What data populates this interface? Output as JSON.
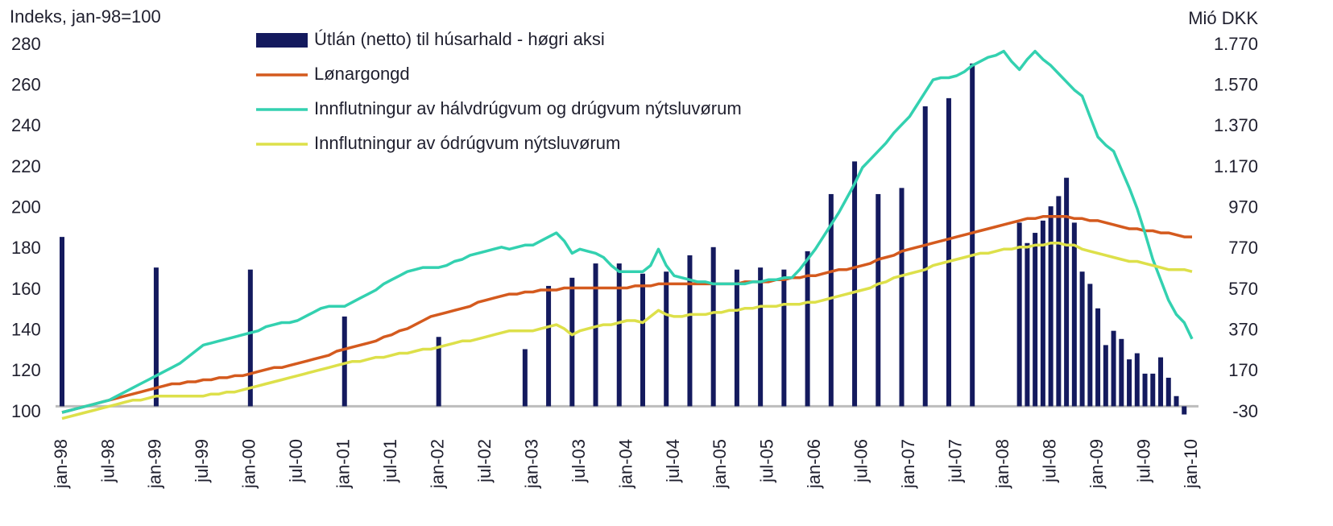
{
  "chart_data": {
    "type": "combo",
    "ylabel": "Indeks, jan-98=100",
    "y2label": "Mió DKK",
    "categories": [
      "jan-98",
      null,
      null,
      null,
      null,
      null,
      "jul-98",
      null,
      null,
      null,
      null,
      null,
      "jan-99",
      null,
      null,
      null,
      null,
      null,
      "jul-99",
      null,
      null,
      null,
      null,
      null,
      "jan-00",
      null,
      null,
      null,
      null,
      null,
      "jul-00",
      null,
      null,
      null,
      null,
      null,
      "jan-01",
      null,
      null,
      null,
      null,
      null,
      "jul-01",
      null,
      null,
      null,
      null,
      null,
      "jan-02",
      null,
      null,
      null,
      null,
      null,
      "jul-02",
      null,
      null,
      null,
      null,
      null,
      "jan-03",
      null,
      null,
      null,
      null,
      null,
      "jul-03",
      null,
      null,
      null,
      null,
      null,
      "jan-04",
      null,
      null,
      null,
      null,
      null,
      "jul-04",
      null,
      null,
      null,
      null,
      null,
      "jan-05",
      null,
      null,
      null,
      null,
      null,
      "jul-05",
      null,
      null,
      null,
      null,
      null,
      "jan-06",
      null,
      null,
      null,
      null,
      null,
      "jul-06",
      null,
      null,
      null,
      null,
      null,
      "jan-07",
      null,
      null,
      null,
      null,
      null,
      "jul-07",
      null,
      null,
      null,
      null,
      null,
      "jan-08",
      null,
      null,
      null,
      null,
      null,
      "jul-08",
      null,
      null,
      null,
      null,
      null,
      "jan-09",
      null,
      null,
      null,
      null,
      null,
      "jul-09",
      null,
      null,
      null,
      null,
      null,
      "jan-10"
    ],
    "ylim": [
      100,
      280
    ],
    "yticks": [
      100,
      120,
      140,
      160,
      180,
      200,
      220,
      240,
      260,
      280
    ],
    "y2lim": [
      -30,
      1770
    ],
    "y2ticks": [
      -30,
      170,
      370,
      570,
      770,
      970,
      {
        "value": 1170,
        "label": "1.170"
      },
      {
        "value": 1370,
        "label": "1.370"
      },
      {
        "value": 1570,
        "label": "1.570"
      },
      {
        "value": 1770,
        "label": "1.770"
      }
    ],
    "series": [
      {
        "name": "Útlán (netto) til húsarhald - høgri aksi",
        "type": "bar",
        "axis": "y2",
        "color": "#141a5e",
        "values": [
          830,
          null,
          null,
          null,
          null,
          null,
          null,
          null,
          null,
          null,
          null,
          null,
          680,
          null,
          null,
          null,
          null,
          null,
          null,
          null,
          null,
          null,
          null,
          null,
          670,
          null,
          null,
          null,
          null,
          null,
          null,
          null,
          null,
          null,
          null,
          null,
          440,
          null,
          null,
          null,
          null,
          null,
          null,
          null,
          null,
          null,
          null,
          null,
          340,
          null,
          null,
          null,
          null,
          null,
          null,
          null,
          null,
          null,
          null,
          280,
          null,
          null,
          590,
          null,
          null,
          630,
          null,
          null,
          700,
          null,
          null,
          700,
          null,
          null,
          650,
          null,
          null,
          660,
          null,
          null,
          740,
          null,
          null,
          780,
          null,
          null,
          670,
          null,
          null,
          680,
          null,
          null,
          670,
          null,
          null,
          760,
          null,
          null,
          1040,
          null,
          null,
          1200,
          null,
          null,
          1040,
          null,
          null,
          1070,
          null,
          null,
          1470,
          null,
          null,
          1510,
          null,
          null,
          1680,
          null,
          null,
          null,
          null,
          null,
          900,
          800,
          850,
          910,
          980,
          1030,
          1120,
          900,
          660,
          600,
          480,
          300,
          370,
          330,
          230,
          260,
          160,
          160,
          240,
          140,
          50,
          -40,
          null
        ]
      },
      {
        "name": "Lønargongd",
        "type": "line",
        "color": "#d45a1e",
        "values": [
          100,
          101,
          102,
          103,
          104,
          105,
          106,
          107,
          108,
          109,
          110,
          111,
          112,
          113,
          114,
          114,
          115,
          115,
          116,
          116,
          117,
          117,
          118,
          118,
          119,
          120,
          121,
          122,
          122,
          123,
          124,
          125,
          126,
          127,
          128,
          130,
          131,
          132,
          133,
          134,
          135,
          137,
          138,
          140,
          141,
          143,
          145,
          147,
          148,
          149,
          150,
          151,
          152,
          154,
          155,
          156,
          157,
          158,
          158,
          159,
          159,
          160,
          160,
          160,
          161,
          161,
          161,
          161,
          161,
          161,
          161,
          161,
          161,
          162,
          162,
          162,
          163,
          163,
          163,
          163,
          163,
          163,
          163,
          163,
          163,
          163,
          163,
          164,
          164,
          164,
          164,
          165,
          165,
          166,
          166,
          167,
          167,
          168,
          169,
          170,
          170,
          171,
          172,
          173,
          175,
          176,
          177,
          179,
          180,
          181,
          182,
          183,
          184,
          185,
          186,
          187,
          188,
          189,
          190,
          191,
          192,
          193,
          194,
          195,
          195,
          196,
          196,
          196,
          196,
          195,
          195,
          194,
          194,
          193,
          192,
          191,
          190,
          190,
          189,
          189,
          188,
          188,
          187,
          186,
          186
        ]
      },
      {
        "name": "Innflutningur av hálvdrúgvum og drúgvum nýtsluvørum",
        "type": "line",
        "color": "#33d1b0",
        "values": [
          100,
          101,
          102,
          103,
          104,
          105,
          106,
          108,
          110,
          112,
          114,
          116,
          118,
          120,
          122,
          124,
          127,
          130,
          133,
          134,
          135,
          136,
          137,
          138,
          139,
          140,
          142,
          143,
          144,
          144,
          145,
          147,
          149,
          151,
          152,
          152,
          152,
          154,
          156,
          158,
          160,
          163,
          165,
          167,
          169,
          170,
          171,
          171,
          171,
          172,
          174,
          175,
          177,
          178,
          179,
          180,
          181,
          180,
          181,
          182,
          182,
          184,
          186,
          188,
          184,
          178,
          180,
          179,
          178,
          176,
          172,
          169,
          169,
          169,
          169,
          172,
          180,
          172,
          167,
          166,
          165,
          164,
          164,
          163,
          163,
          163,
          163,
          163,
          164,
          164,
          165,
          165,
          166,
          166,
          170,
          175,
          180,
          186,
          192,
          198,
          205,
          212,
          220,
          224,
          228,
          232,
          237,
          241,
          245,
          251,
          257,
          263,
          264,
          264,
          265,
          267,
          270,
          272,
          274,
          275,
          277,
          272,
          268,
          273,
          277,
          273,
          270,
          266,
          262,
          258,
          255,
          245,
          235,
          231,
          228,
          219,
          210,
          200,
          188,
          175,
          165,
          155,
          148,
          144,
          136
        ]
      },
      {
        "name": "Innflutningur av ódrúgvum nýtsluvørum",
        "type": "line",
        "color": "#dde04a",
        "values": [
          97,
          98,
          99,
          100,
          101,
          102,
          103,
          104,
          105,
          106,
          106,
          107,
          108,
          108,
          108,
          108,
          108,
          108,
          108,
          109,
          109,
          110,
          110,
          111,
          112,
          113,
          114,
          115,
          116,
          117,
          118,
          119,
          120,
          121,
          122,
          123,
          124,
          125,
          125,
          126,
          127,
          127,
          128,
          129,
          129,
          130,
          131,
          131,
          132,
          133,
          134,
          135,
          135,
          136,
          137,
          138,
          139,
          140,
          140,
          140,
          140,
          141,
          142,
          143,
          141,
          138,
          140,
          141,
          142,
          143,
          143,
          144,
          145,
          145,
          144,
          147,
          150,
          148,
          147,
          147,
          148,
          148,
          148,
          149,
          149,
          150,
          150,
          151,
          151,
          152,
          152,
          152,
          153,
          153,
          153,
          154,
          154,
          155,
          156,
          157,
          158,
          159,
          160,
          161,
          163,
          164,
          166,
          167,
          168,
          169,
          170,
          172,
          173,
          174,
          175,
          176,
          177,
          178,
          178,
          179,
          180,
          180,
          181,
          181,
          182,
          182,
          183,
          183,
          182,
          182,
          180,
          179,
          178,
          177,
          176,
          175,
          174,
          174,
          173,
          172,
          171,
          170,
          170,
          170,
          169
        ]
      }
    ]
  }
}
